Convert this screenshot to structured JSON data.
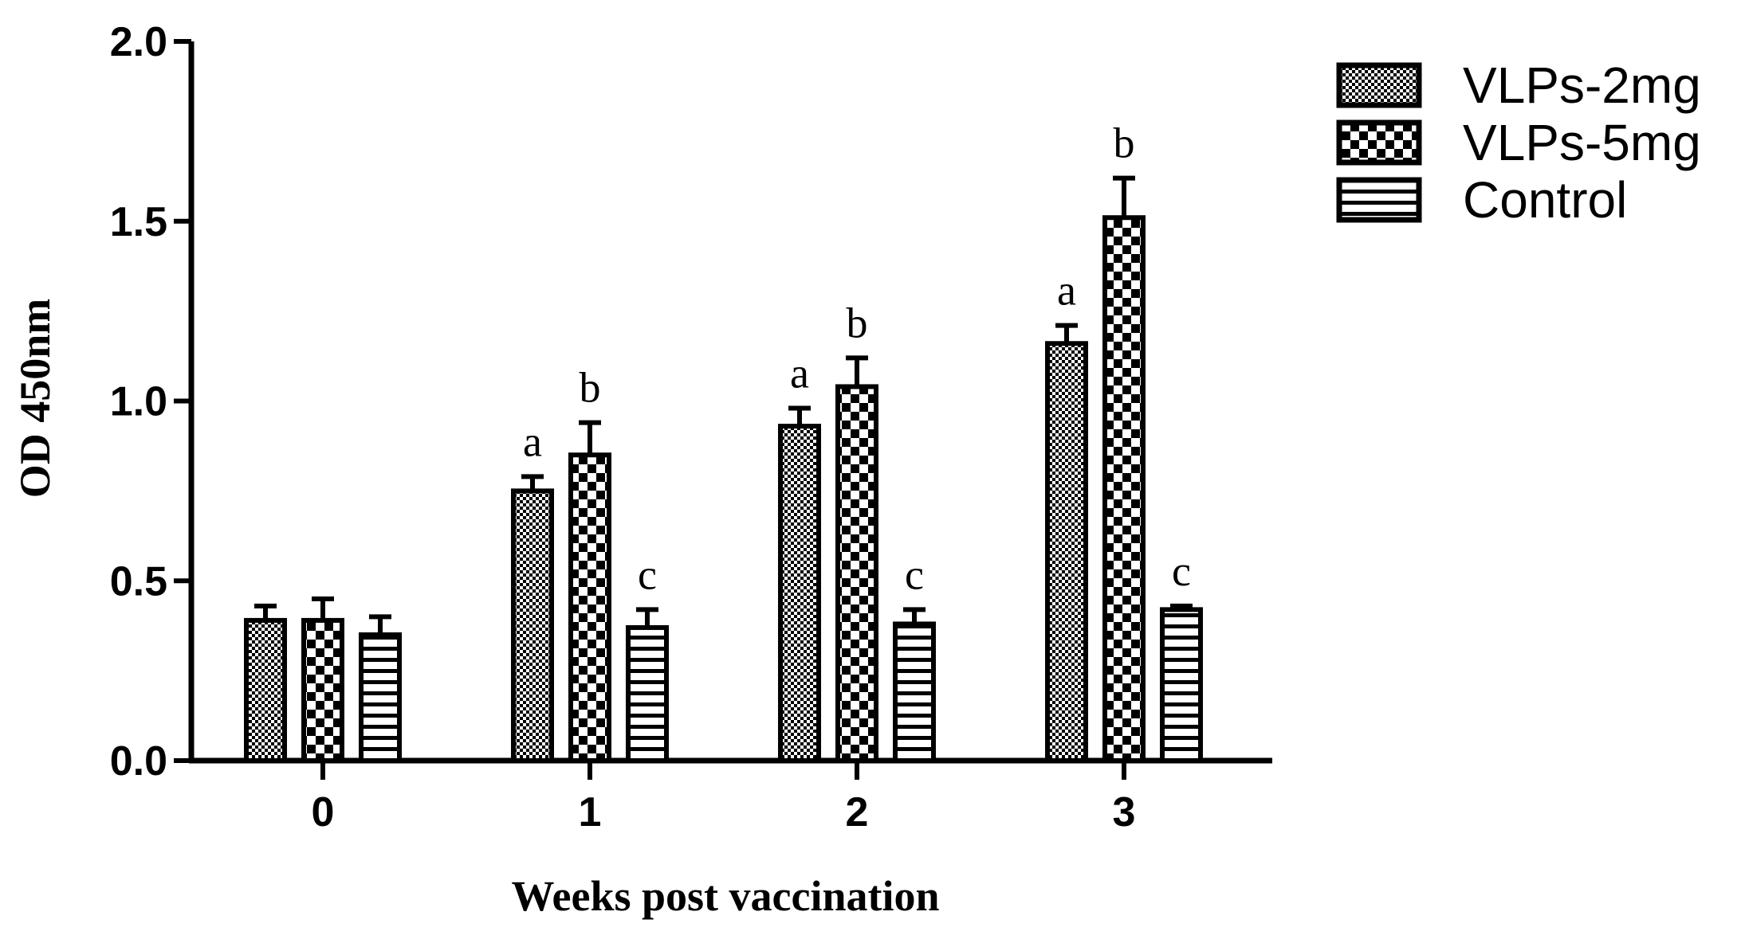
{
  "chart_data": {
    "type": "bar",
    "xlabel": "Weeks post vaccination",
    "ylabel": "OD 450nm",
    "ylim": [
      0,
      2.0
    ],
    "yticks": [
      "0.0",
      "0.5",
      "1.0",
      "1.5",
      "2.0"
    ],
    "categories": [
      "0",
      "1",
      "2",
      "3"
    ],
    "legend_position": "top-right",
    "grid": false,
    "series": [
      {
        "name": "VLPs-2mg",
        "pattern": "fine-checker",
        "values": [
          0.39,
          0.75,
          0.93,
          1.16
        ],
        "errors": [
          0.04,
          0.04,
          0.05,
          0.05
        ],
        "letters": [
          "",
          "a",
          "a",
          "a"
        ]
      },
      {
        "name": "VLPs-5mg",
        "pattern": "coarse-checker",
        "values": [
          0.39,
          0.85,
          1.04,
          1.51
        ],
        "errors": [
          0.06,
          0.09,
          0.08,
          0.11
        ],
        "letters": [
          "",
          "b",
          "b",
          "b"
        ]
      },
      {
        "name": "Control",
        "pattern": "horizontal-stripes",
        "values": [
          0.35,
          0.37,
          0.38,
          0.42
        ],
        "errors": [
          0.05,
          0.05,
          0.04,
          0.01
        ],
        "letters": [
          "",
          "c",
          "c",
          "c"
        ]
      }
    ]
  }
}
